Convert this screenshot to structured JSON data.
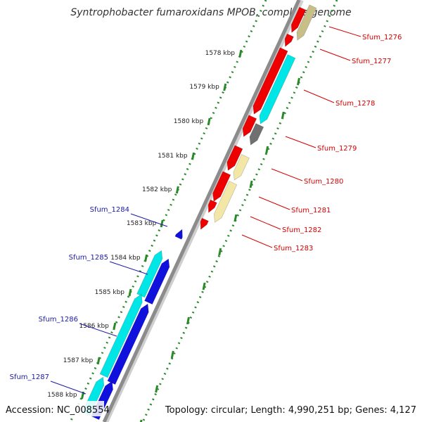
{
  "title": "Syntrophobacter fumaroxidans MPOB, complete genome",
  "accession_label": "Accession: NC_008554",
  "topology_label": "Topology: circular; Length: 4,990,251 bp; Genes: 4,127",
  "colors": {
    "backbone": "#8c8c8c",
    "tick_green": "#2a8a2a",
    "forward_label": "#d40000",
    "reverse_label": "#1a1aa8",
    "red": "#ee0000",
    "cyan": "#00e6e6",
    "blue": "#1111dd",
    "khaki": "#c8bf88",
    "pale_yellow": "#f2e7a6",
    "gray": "#707070"
  },
  "kbp_labels": [
    "1578 kbp",
    "1579 kbp",
    "1580 kbp",
    "1581 kbp",
    "1582 kbp",
    "1583 kbp",
    "1584 kbp",
    "1585 kbp",
    "1586 kbp",
    "1587 kbp",
    "1588 kbp"
  ],
  "forward_genes": [
    "Sfum_1276",
    "Sfum_1277",
    "Sfum_1278",
    "Sfum_1279",
    "Sfum_1280",
    "Sfum_1281",
    "Sfum_1282",
    "Sfum_1283"
  ],
  "reverse_genes": [
    "Sfum_1284",
    "Sfum_1285",
    "Sfum_1286",
    "Sfum_1287"
  ]
}
